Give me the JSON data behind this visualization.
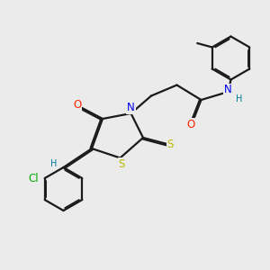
{
  "bg_color": "#ebebeb",
  "bond_color": "#1a1a1a",
  "bond_width": 1.6,
  "dbo": 0.055,
  "atom_colors": {
    "O": "#ff2200",
    "N": "#0000ee",
    "S": "#bbbb00",
    "Cl": "#00aa00",
    "H": "#007799",
    "C": "#1a1a1a"
  },
  "fs": 8.5,
  "fs2": 7.0
}
